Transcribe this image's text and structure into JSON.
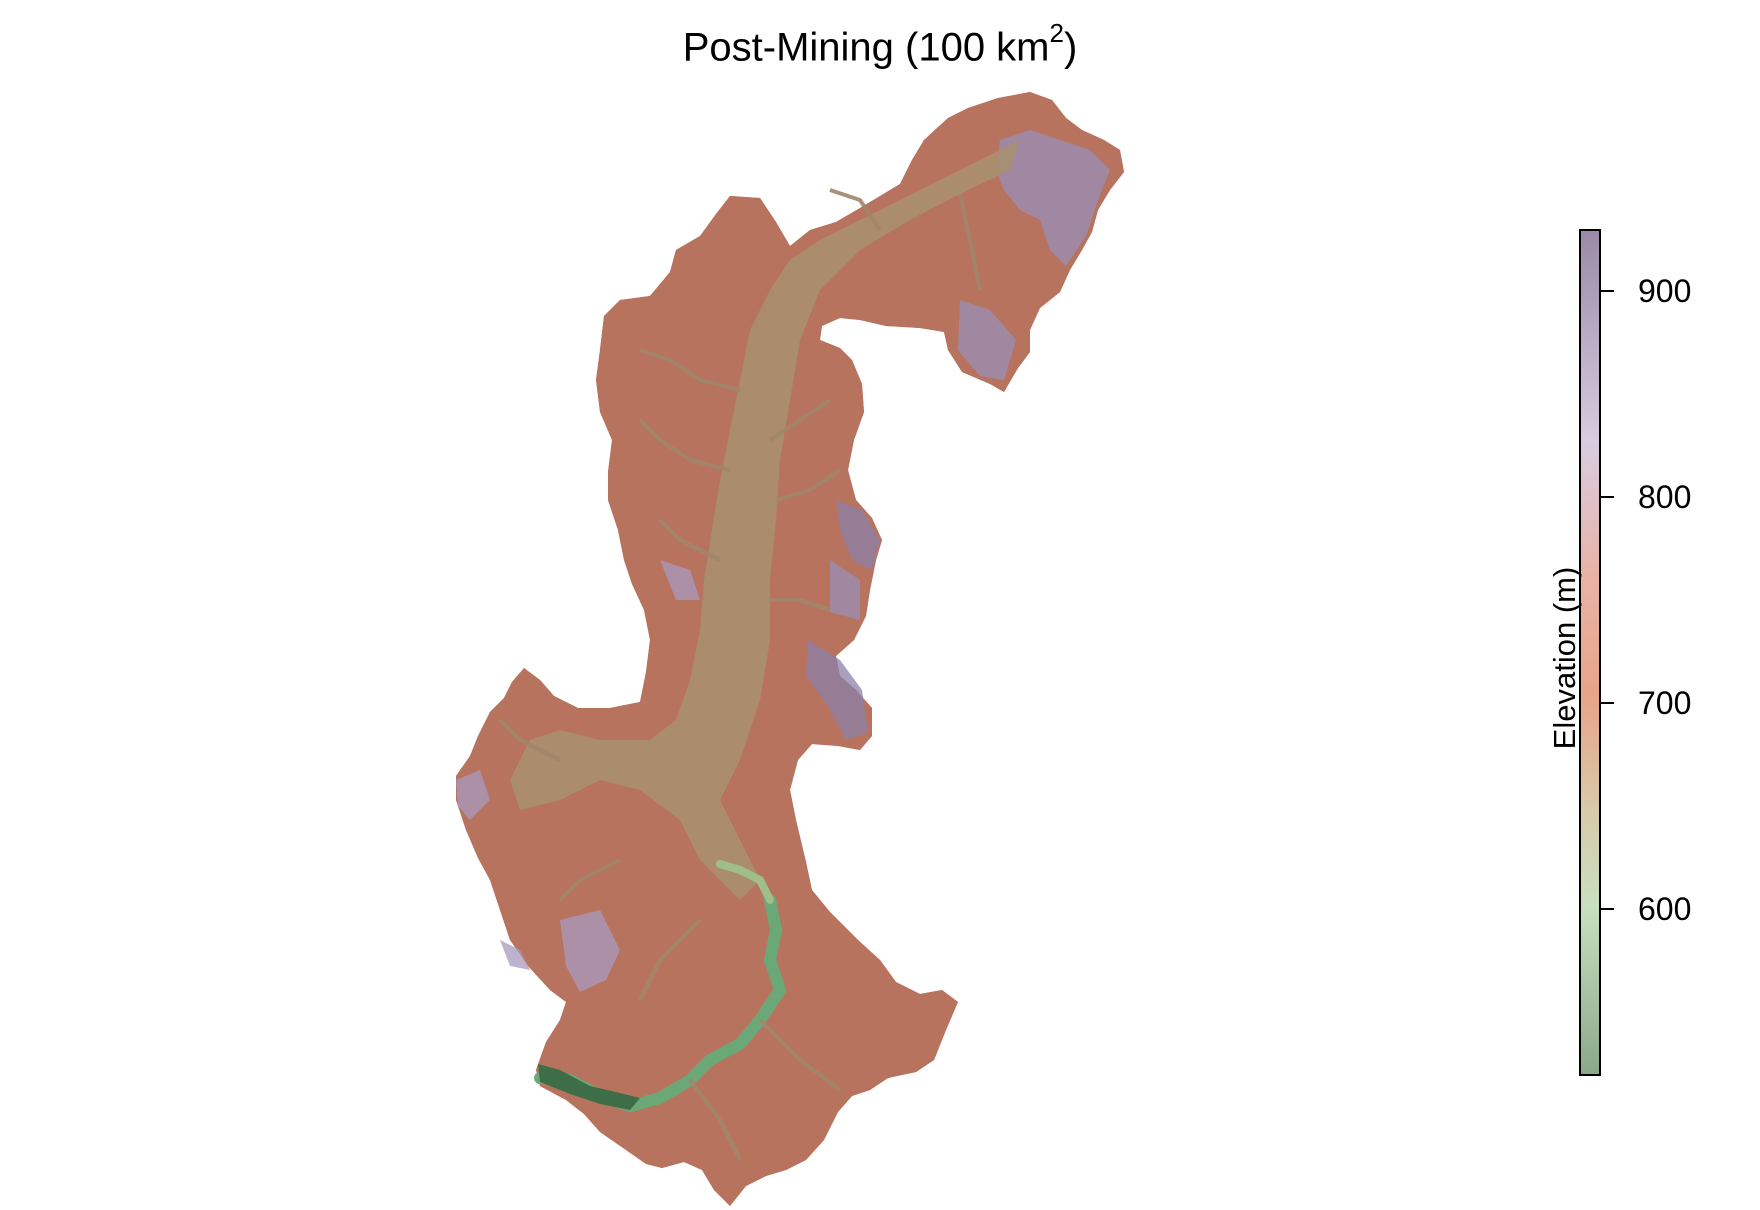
{
  "title": {
    "text": "Post-Mining (100 km",
    "superscript": "2",
    "suffix": ")"
  },
  "legend": {
    "label": "Elevation (m)",
    "min": 520,
    "max": 930,
    "ticks": [
      {
        "value": 900,
        "label": "900"
      },
      {
        "value": 800,
        "label": "800"
      },
      {
        "value": 700,
        "label": "700"
      },
      {
        "value": 600,
        "label": "600"
      }
    ],
    "colors": {
      "high": "#9a8aa6",
      "upper": "#d8cce0",
      "mid_high": "#e8b4a8",
      "mid": "#e8a488",
      "mid_low": "#d8c8a8",
      "low_mid": "#c8e0c0",
      "low": "#8aa888"
    }
  },
  "map": {
    "colors": {
      "terrain": "#b8735f",
      "valley": "#a89070",
      "ridge_high": "#8c7fa8",
      "stream_low": "#5e9a6a",
      "outlet": "#3d6e48"
    }
  }
}
